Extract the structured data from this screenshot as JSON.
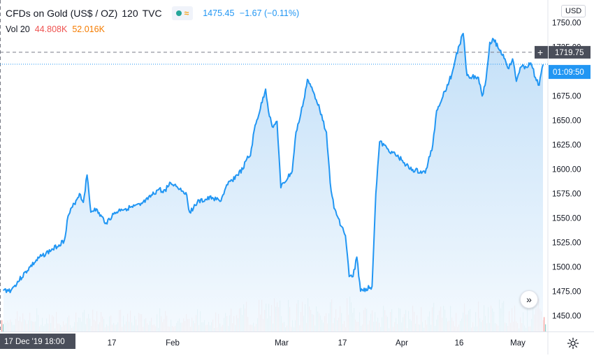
{
  "header": {
    "symbol": "CFDs on Gold (US$ / OZ)",
    "interval": "120",
    "source": "TVC",
    "last_price": "1475.45",
    "change": "−1.67 (−0.11%)",
    "wave_icon": "≈"
  },
  "volume_legend": {
    "label": "Vol 20",
    "value1": "44.808K",
    "value2": "52.016K"
  },
  "currency": "USD",
  "price_axis": {
    "ticks": [
      "1450.00",
      "1475.00",
      "1500.00",
      "1525.00",
      "1550.00",
      "1575.00",
      "1600.00",
      "1625.00",
      "1650.00",
      "1675.00",
      "1700.00",
      "1725.00",
      "1750.00"
    ],
    "last_value_label": "1719.75",
    "countdown_label": "01:09:50",
    "crosshair_value": 1719.75,
    "live_price": 1707.5
  },
  "time_axis": {
    "labels": [
      "17",
      "Feb",
      "Mar",
      "17",
      "Apr",
      "16",
      "May"
    ],
    "crosshair_label": "17 Dec '19  18:00"
  },
  "colors": {
    "line": "#2196f3",
    "area_top": "#bcdcf7",
    "area_bottom": "#f3f9fe",
    "up_volume": "#26a69a",
    "down_volume": "#ef5350",
    "axis_text": "#131722",
    "grid": "#f0f3fa"
  },
  "icons": {
    "scroll": "chevrons-right-icon",
    "settings": "gear-icon",
    "crosshair": "plus-icon"
  },
  "chart_data": {
    "type": "area",
    "title": "CFDs on Gold (US$ / OZ)",
    "xlabel": "",
    "ylabel": "",
    "ylim": [
      1436,
      1760
    ],
    "series": [
      {
        "x": [
          "2019-12-17",
          "2019-12-19",
          "2019-12-20",
          "2019-12-24",
          "2019-12-27",
          "2019-12-30",
          "2020-01-02",
          "2020-01-03",
          "2020-01-06",
          "2020-01-07",
          "2020-01-08",
          "2020-01-09",
          "2020-01-10",
          "2020-01-13",
          "2020-01-15",
          "2020-01-17",
          "2020-01-20",
          "2020-01-22",
          "2020-01-24",
          "2020-01-27",
          "2020-01-28",
          "2020-01-30",
          "2020-01-31",
          "2020-02-03",
          "2020-02-04",
          "2020-02-06",
          "2020-02-10",
          "2020-02-12",
          "2020-02-14",
          "2020-02-18",
          "2020-02-19",
          "2020-02-20",
          "2020-02-21",
          "2020-02-24",
          "2020-02-25",
          "2020-02-26",
          "2020-02-27",
          "2020-02-28",
          "2020-03-02",
          "2020-03-03",
          "2020-03-04",
          "2020-03-05",
          "2020-03-06",
          "2020-03-09",
          "2020-03-10",
          "2020-03-11",
          "2020-03-12",
          "2020-03-13",
          "2020-03-16",
          "2020-03-17",
          "2020-03-18",
          "2020-03-19",
          "2020-03-20",
          "2020-03-23",
          "2020-03-24",
          "2020-03-25",
          "2020-03-27",
          "2020-03-31",
          "2020-04-02",
          "2020-04-06",
          "2020-04-08",
          "2020-04-09",
          "2020-04-13",
          "2020-04-14",
          "2020-04-15",
          "2020-04-16",
          "2020-04-17",
          "2020-04-20",
          "2020-04-21",
          "2020-04-22",
          "2020-04-23",
          "2020-04-24",
          "2020-04-27",
          "2020-04-28",
          "2020-04-29",
          "2020-04-30",
          "2020-05-01",
          "2020-05-04",
          "2020-05-05",
          "2020-05-06",
          "2020-05-07"
        ],
        "values": [
          1476,
          1476,
          1481,
          1500,
          1511,
          1518,
          1527,
          1552,
          1575,
          1566,
          1594,
          1556,
          1560,
          1545,
          1554,
          1559,
          1561,
          1563,
          1569,
          1580,
          1576,
          1586,
          1584,
          1576,
          1556,
          1566,
          1571,
          1567,
          1584,
          1600,
          1610,
          1614,
          1640,
          1682,
          1654,
          1643,
          1649,
          1581,
          1598,
          1638,
          1652,
          1670,
          1692,
          1666,
          1650,
          1638,
          1586,
          1560,
          1532,
          1490,
          1490,
          1510,
          1475,
          1480,
          1575,
          1628,
          1621,
          1609,
          1600,
          1596,
          1625,
          1660,
          1697,
          1714,
          1727,
          1739,
          1696,
          1694,
          1675,
          1692,
          1730,
          1733,
          1713,
          1703,
          1713,
          1690,
          1704,
          1707,
          1694,
          1686,
          1707
        ]
      }
    ],
    "volume": "bars at bottom, red and green"
  }
}
